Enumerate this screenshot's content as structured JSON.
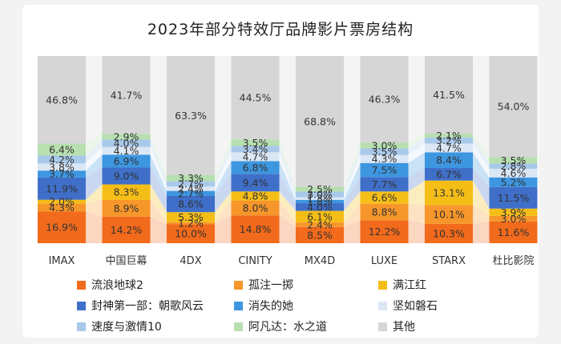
{
  "chart_data": {
    "type": "bar",
    "stacked": true,
    "normalized": true,
    "title": "2023年部分特效厅品牌影片票房结构",
    "categories": [
      "IMAX",
      "中国巨幕",
      "4DX",
      "CINITY",
      "MX4D",
      "LUXE",
      "STARX",
      "杜比影院"
    ],
    "legend_placement": "bottom",
    "series": [
      {
        "name": "流浪地球2",
        "color": "#f26a1b",
        "values": [
          16.9,
          14.2,
          10.0,
          14.8,
          8.5,
          12.2,
          10.3,
          11.6
        ],
        "labels": [
          "16.9%",
          "14.2%",
          "10.0%",
          "14.8%",
          "8.5%",
          "12.2%",
          "10.3%",
          "11.6%"
        ]
      },
      {
        "name": "孤注一掷",
        "color": "#f7962a",
        "values": [
          4.3,
          8.9,
          1.2,
          8.0,
          2.4,
          8.8,
          10.1,
          3.0
        ],
        "labels": [
          "4.3%",
          "8.9%",
          "1.2%",
          "8.0%",
          "2.4%",
          "8.8%",
          "10.1%",
          "3.0%"
        ]
      },
      {
        "name": "满江红",
        "color": "#f5be17",
        "values": [
          2.0,
          8.3,
          5.3,
          4.8,
          6.1,
          6.6,
          13.1,
          3.9
        ],
        "labels": [
          "2.0%",
          "8.3%",
          "5.3%",
          "4.8%",
          "6.1%",
          "6.6%",
          "13.1%",
          "3.9%"
        ]
      },
      {
        "name": "封神第一部：朝歌风云",
        "color": "#3f6fc9",
        "values": [
          11.9,
          9.0,
          8.6,
          9.4,
          4.0,
          7.7,
          6.7,
          11.5
        ],
        "labels": [
          "11.9%",
          "9.0%",
          "8.6%",
          "9.4%",
          "4.0%",
          "7.7%",
          "6.7%",
          "11.5%"
        ]
      },
      {
        "name": "消失的她",
        "color": "#3d96e0",
        "values": [
          3.7,
          6.9,
          2.7,
          6.8,
          1.8,
          7.5,
          8.4,
          5.2
        ],
        "labels": [
          "3.7%",
          "6.9%",
          "2.7%",
          "6.8%",
          "1.8%",
          "7.5%",
          "8.4%",
          "5.2%"
        ]
      },
      {
        "name": "坚如磐石",
        "color": "#dbe7f5",
        "values": [
          3.8,
          4.1,
          2.4,
          4.7,
          1.3,
          4.3,
          4.7,
          4.6
        ],
        "labels": [
          "3.8%",
          "4.1%",
          "2.4%",
          "4.7%",
          "1.3%",
          "4.3%",
          "4.7%",
          "4.6%"
        ]
      },
      {
        "name": "速度与激情10",
        "color": "#a9c9ea",
        "values": [
          4.2,
          4.0,
          2.7,
          3.4,
          3.0,
          3.5,
          3.2,
          2.8
        ],
        "labels": [
          "4.2%",
          "4.0%",
          "2.7%",
          "3.4%",
          "3.0%",
          "3.5%",
          "3.2%",
          "2.8%"
        ]
      },
      {
        "name": "阿凡达：水之道",
        "color": "#b7dfb0",
        "values": [
          6.4,
          2.9,
          3.3,
          3.5,
          2.5,
          3.0,
          2.1,
          3.5
        ],
        "labels": [
          "6.4%",
          "2.9%",
          "3.3%",
          "3.5%",
          "2.5%",
          "3.0%",
          "2.1%",
          "3.5%"
        ]
      },
      {
        "name": "其他",
        "color": "#d6d6d6",
        "values": [
          46.8,
          41.7,
          63.3,
          44.5,
          68.8,
          46.3,
          41.5,
          54.0
        ],
        "labels": [
          "46.8%",
          "41.7%",
          "63.3%",
          "44.5%",
          "68.8%",
          "46.3%",
          "41.5%",
          "54.0%"
        ]
      }
    ]
  }
}
